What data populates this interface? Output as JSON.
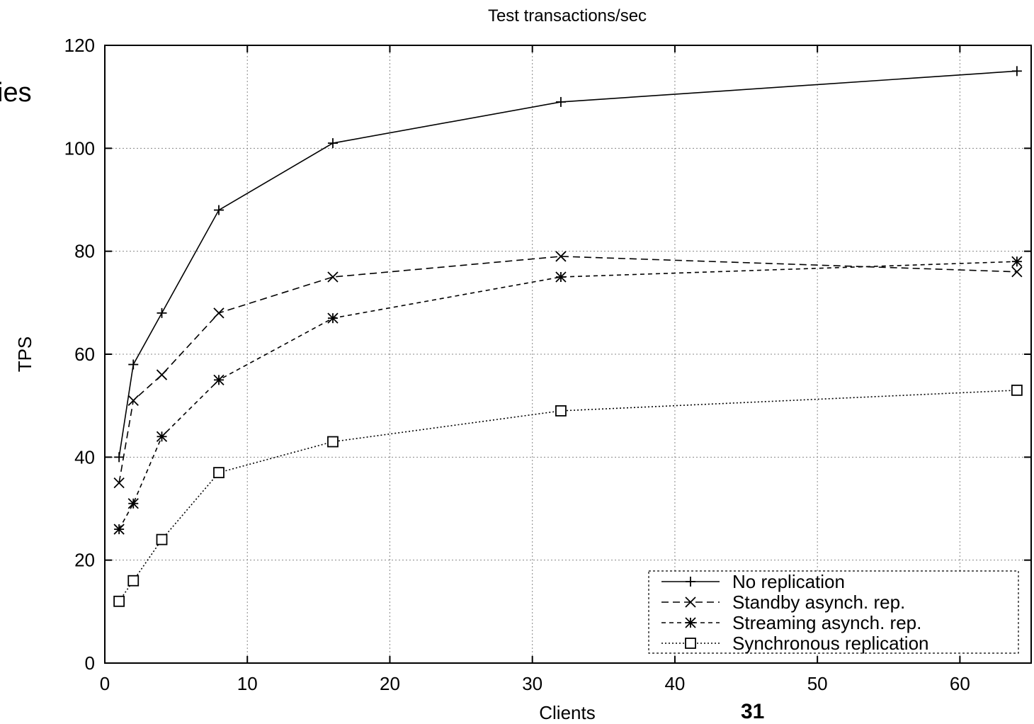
{
  "slide": {
    "fragment_text": "ies",
    "page_number": "31"
  },
  "chart_data": {
    "type": "line",
    "title": "Test transactions/sec",
    "xlabel": "Clients",
    "ylabel": "TPS",
    "xlim": [
      0,
      65
    ],
    "ylim": [
      0,
      120
    ],
    "xticks": [
      0,
      10,
      20,
      30,
      40,
      50,
      60
    ],
    "yticks": [
      0,
      20,
      40,
      60,
      80,
      100,
      120
    ],
    "grid": true,
    "legend_position": "bottom-right",
    "x": [
      1,
      2,
      4,
      8,
      16,
      32,
      64
    ],
    "series": [
      {
        "name": "No replication",
        "values": [
          40,
          58,
          68,
          88,
          101,
          109,
          115
        ],
        "marker": "plus",
        "dash": "solid"
      },
      {
        "name": "Standby asynch. rep.",
        "values": [
          35,
          51,
          56,
          68,
          75,
          79,
          76
        ],
        "marker": "cross",
        "dash": "dashed"
      },
      {
        "name": "Streaming asynch. rep.",
        "values": [
          26,
          31,
          44,
          55,
          67,
          75,
          78
        ],
        "marker": "star",
        "dash": "short-dashed"
      },
      {
        "name": "Synchronous replication",
        "values": [
          12,
          16,
          24,
          37,
          43,
          49,
          53
        ],
        "marker": "square",
        "dash": "dotted"
      }
    ]
  }
}
